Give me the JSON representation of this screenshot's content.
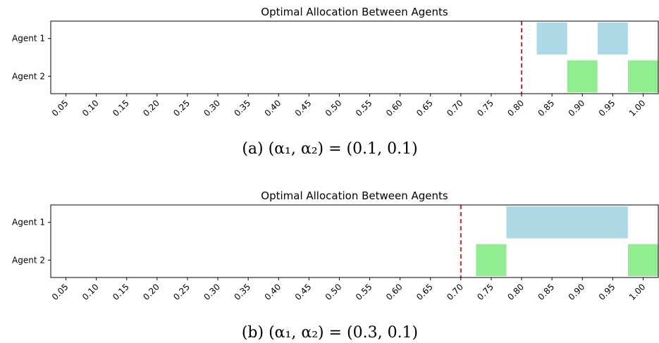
{
  "chart_data": [
    {
      "type": "bar",
      "orientation": "horizontal-interval",
      "title": "Optimal Allocation Between Agents",
      "caption": "(a) (α₁, α₂) = (0.1, 0.1)",
      "categories": [
        "Agent 1",
        "Agent 2"
      ],
      "xticks": [
        "0.05",
        "0.10",
        "0.15",
        "0.20",
        "0.25",
        "0.30",
        "0.35",
        "0.40",
        "0.45",
        "0.50",
        "0.55",
        "0.60",
        "0.65",
        "0.70",
        "0.75",
        "0.80",
        "0.85",
        "0.90",
        "0.95",
        "1.00"
      ],
      "xlim": [
        0.025,
        1.025
      ],
      "threshold": 0.8,
      "threshold_color": "#d62728",
      "series": [
        {
          "color": "#add8e6",
          "category": "Agent 1",
          "intervals": [
            [
              0.825,
              0.875
            ],
            [
              0.925,
              0.975
            ]
          ]
        },
        {
          "color": "#90ee90",
          "category": "Agent 2",
          "intervals": [
            [
              0.875,
              0.925
            ],
            [
              0.975,
              1.025
            ]
          ]
        }
      ]
    },
    {
      "type": "bar",
      "orientation": "horizontal-interval",
      "title": "Optimal Allocation Between Agents",
      "caption": "(b) (α₁, α₂) = (0.3, 0.1)",
      "categories": [
        "Agent 1",
        "Agent 2"
      ],
      "xticks": [
        "0.05",
        "0.10",
        "0.15",
        "0.20",
        "0.25",
        "0.30",
        "0.35",
        "0.40",
        "0.45",
        "0.50",
        "0.55",
        "0.60",
        "0.65",
        "0.70",
        "0.75",
        "0.80",
        "0.85",
        "0.90",
        "0.95",
        "1.00"
      ],
      "xlim": [
        0.025,
        1.025
      ],
      "threshold": 0.7,
      "threshold_color": "#d62728",
      "series": [
        {
          "color": "#add8e6",
          "category": "Agent 1",
          "intervals": [
            [
              0.775,
              0.975
            ]
          ]
        },
        {
          "color": "#90ee90",
          "category": "Agent 2",
          "intervals": [
            [
              0.725,
              0.775
            ],
            [
              0.975,
              1.025
            ]
          ]
        }
      ]
    }
  ]
}
